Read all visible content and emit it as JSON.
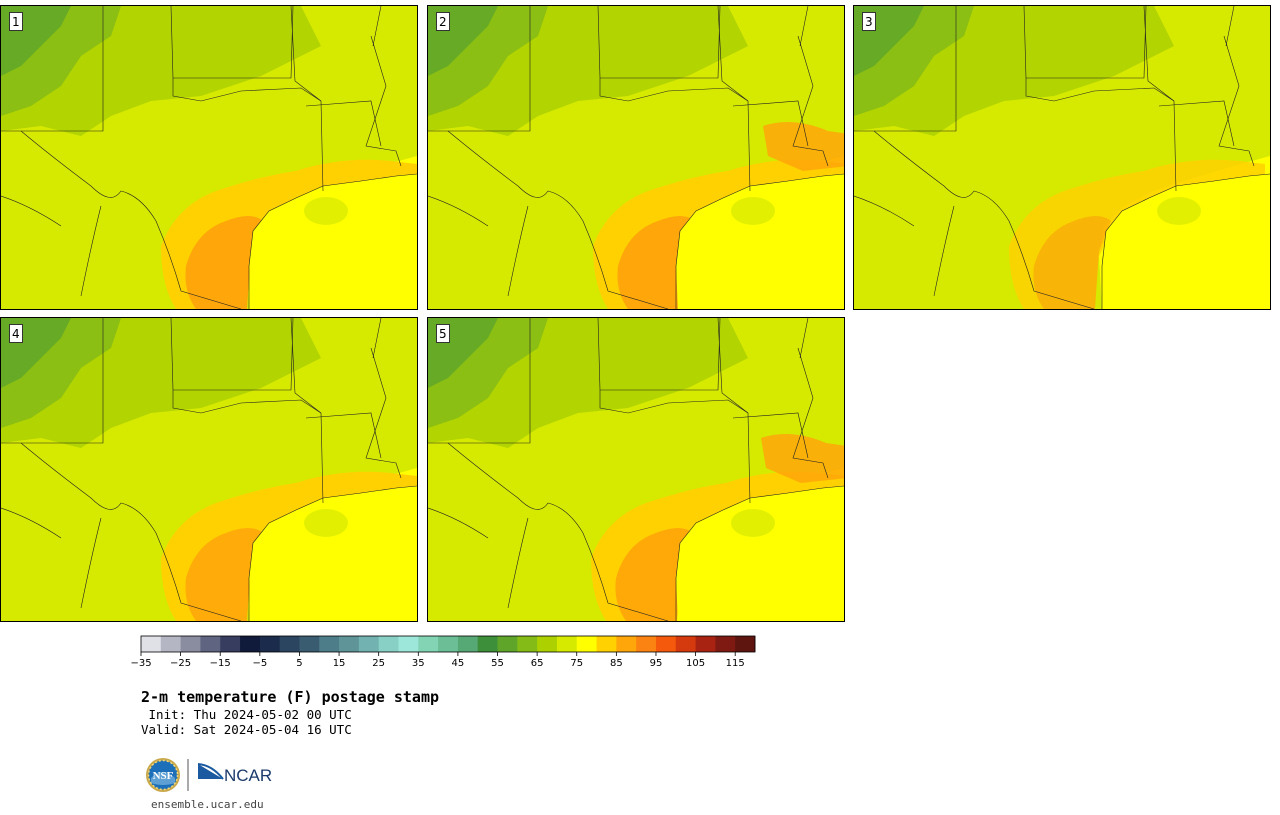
{
  "title": "2-m temperature (F) postage stamp",
  "init_line": " Init: Thu 2024-05-02 00 UTC",
  "valid_line": "Valid: Sat 2024-05-04 16 UTC",
  "website": "ensemble.ucar.edu",
  "logos": {
    "nsf_text": "NSF",
    "ncar_text": "NCAR"
  },
  "members": [
    {
      "label": "1"
    },
    {
      "label": "2"
    },
    {
      "label": "3"
    },
    {
      "label": "4"
    },
    {
      "label": "5"
    }
  ],
  "colorbar": {
    "min": -35,
    "max": 120,
    "step": 5,
    "ticks": [
      -35,
      -25,
      -15,
      -5,
      5,
      15,
      25,
      35,
      45,
      55,
      65,
      75,
      85,
      95,
      105,
      115
    ],
    "tick_labels": [
      "−35",
      "−25",
      "−15",
      "−5",
      "5",
      "15",
      "25",
      "35",
      "45",
      "55",
      "65",
      "75",
      "85",
      "95",
      "105",
      "115"
    ],
    "colors": [
      "#dfe1e6",
      "#b4b6c3",
      "#8a8da0",
      "#5f6480",
      "#363d5e",
      "#101a3a",
      "#1b2b4c",
      "#2b4560",
      "#3a5c71",
      "#4d7d88",
      "#5f9599",
      "#72b2b0",
      "#88cfc6",
      "#9de6da",
      "#82d4b5",
      "#6cbe96",
      "#56a874",
      "#3d8f3a",
      "#5ea52a",
      "#85bb16",
      "#acd000",
      "#d6ea00",
      "#ffff00",
      "#ffd100",
      "#ffa60a",
      "#fb8311",
      "#f55a0c",
      "#d43a0e",
      "#a82311",
      "#7f1a12",
      "#5e1510"
    ]
  },
  "map_colors": {
    "water": "#ffff00",
    "t80": "#ffd100",
    "t85": "#ffa60a",
    "t75": "#d6ea00",
    "t70": "#acd000",
    "t65": "#85bb16",
    "t60": "#5ea52a",
    "t55": "#3d8f3a"
  }
}
